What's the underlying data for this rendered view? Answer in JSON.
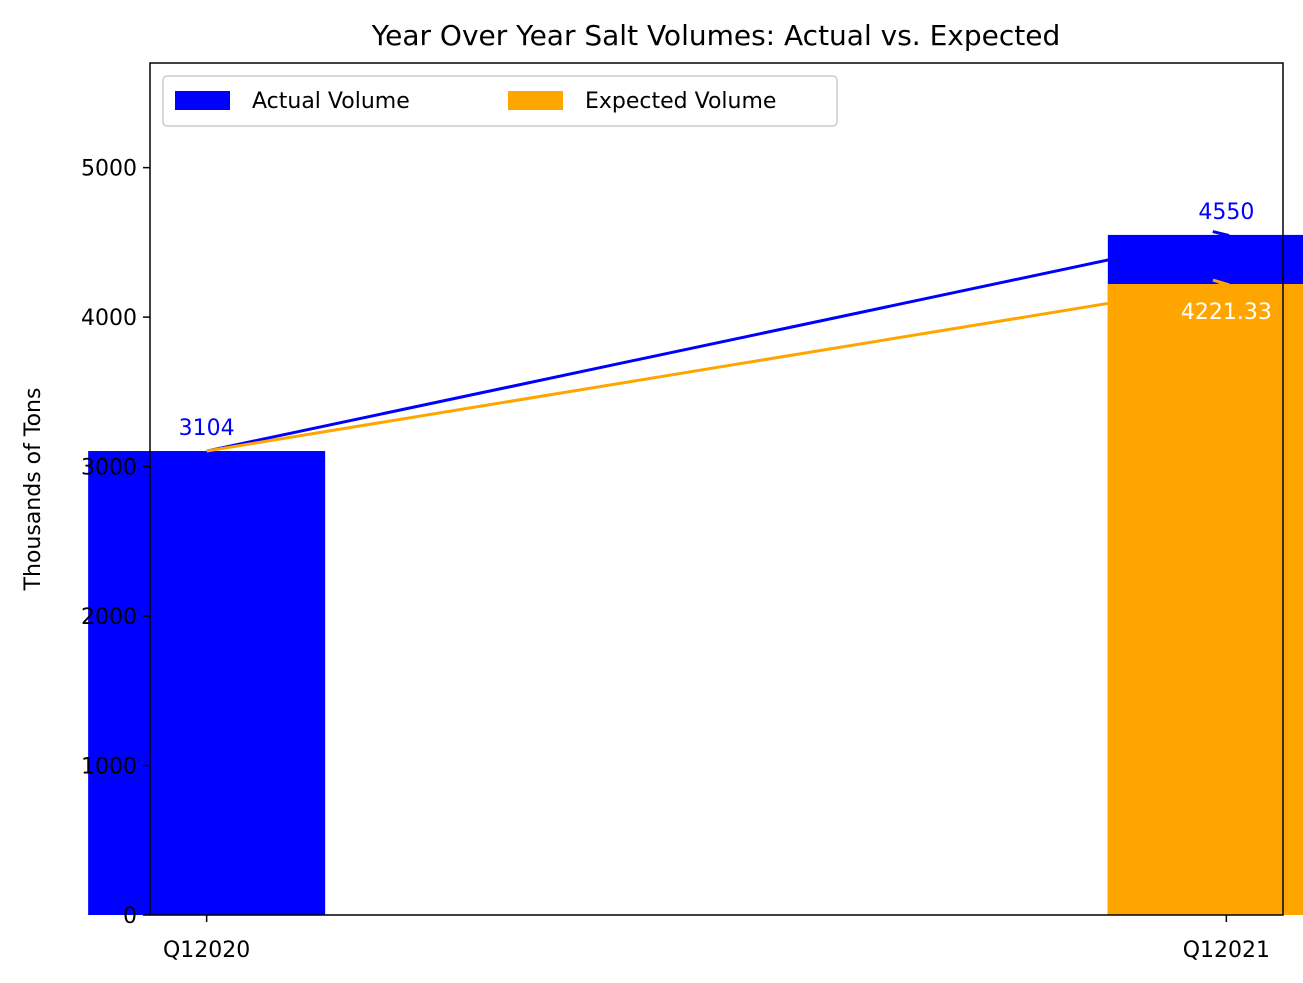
{
  "chart_data": {
    "type": "bar",
    "title": "Year Over Year Salt Volumes: Actual vs. Expected",
    "xlabel": "",
    "ylabel": "Thousands of Tons",
    "categories": [
      "Q12020",
      "Q12021"
    ],
    "ylim": [
      0,
      5700
    ],
    "yticks": [
      0,
      1000,
      2000,
      3000,
      4000,
      5000
    ],
    "grid": false,
    "legend": {
      "placement": "top-left",
      "columns": 2
    },
    "series": [
      {
        "name": "Actual Volume",
        "values": [
          3104,
          4550
        ],
        "color": "#0000ff"
      },
      {
        "name": "Expected Volume",
        "values": [
          null,
          4221.33
        ],
        "color": "#ffa500"
      }
    ],
    "annotations": [
      {
        "text": "3104",
        "series": "Actual Volume",
        "category": "Q12020",
        "color": "#0000ff"
      },
      {
        "text": "4550",
        "series": "Actual Volume",
        "category": "Q12021",
        "color": "#0000ff"
      },
      {
        "text": "4221.33",
        "series": "Expected Volume",
        "category": "Q12021",
        "color": "#ffffff"
      }
    ],
    "trend_lines": [
      {
        "series": "Actual Volume",
        "from": 3104,
        "to": 4550,
        "color": "#0000ff"
      },
      {
        "series": "Expected Volume",
        "from": 3104,
        "to": 4221.33,
        "color": "#ffa500"
      }
    ]
  }
}
